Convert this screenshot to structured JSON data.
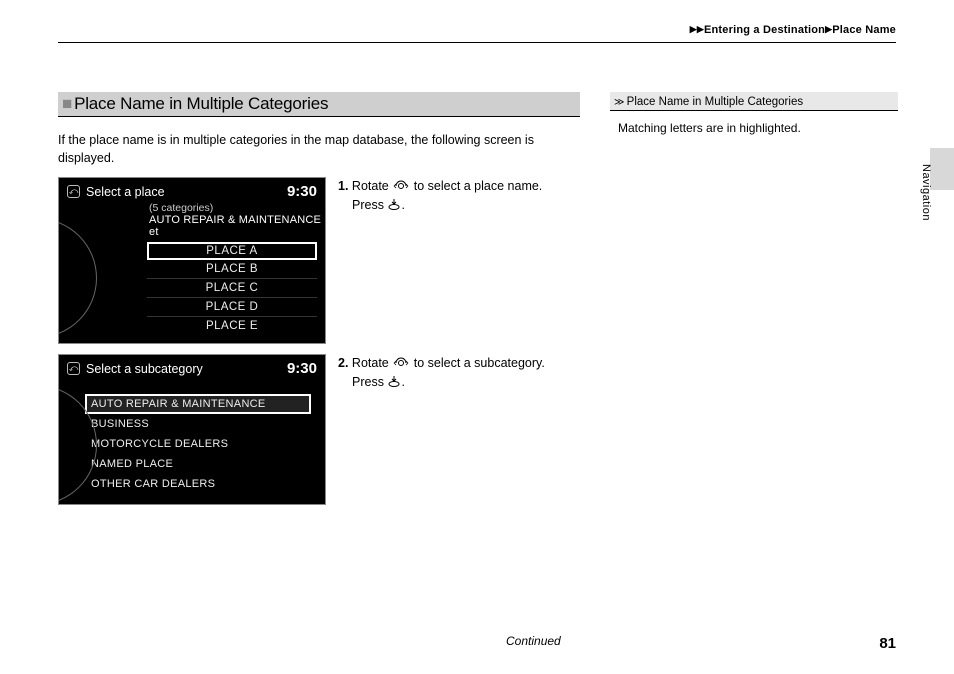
{
  "breadcrumb": {
    "level1": "Entering a Destination",
    "level2": "Place Name"
  },
  "section": {
    "title": "Place Name in Multiple Categories",
    "intro": "If the place name is in multiple categories in the map database, the following screen is displayed."
  },
  "screen1": {
    "title": "Select a place",
    "time": "9:30",
    "sub1": "(5 categories)",
    "sub2": "AUTO REPAIR & MAINTENANCE et",
    "items": [
      "PLACE A",
      "PLACE B",
      "PLACE C",
      "PLACE D",
      "PLACE E"
    ],
    "selectedIndex": 0
  },
  "screen2": {
    "title": "Select a subcategory",
    "time": "9:30",
    "items": [
      "AUTO REPAIR & MAINTENANCE",
      "BUSINESS",
      "MOTORCYCLE DEALERS",
      "NAMED PLACE",
      "OTHER CAR DEALERS"
    ],
    "selectedIndex": 0
  },
  "steps": {
    "s1a": "Rotate",
    "s1b": "to select a place name.",
    "s1c": "Press",
    "s2a": "Rotate",
    "s2b": "to select a subcategory.",
    "s2c": "Press"
  },
  "side": {
    "title": "Place Name in Multiple Categories",
    "text": "Matching letters are in highlighted."
  },
  "sideLabel": "Navigation",
  "continued": "Continued",
  "pageNumber": "81",
  "num1": "1.",
  "num2": "2."
}
